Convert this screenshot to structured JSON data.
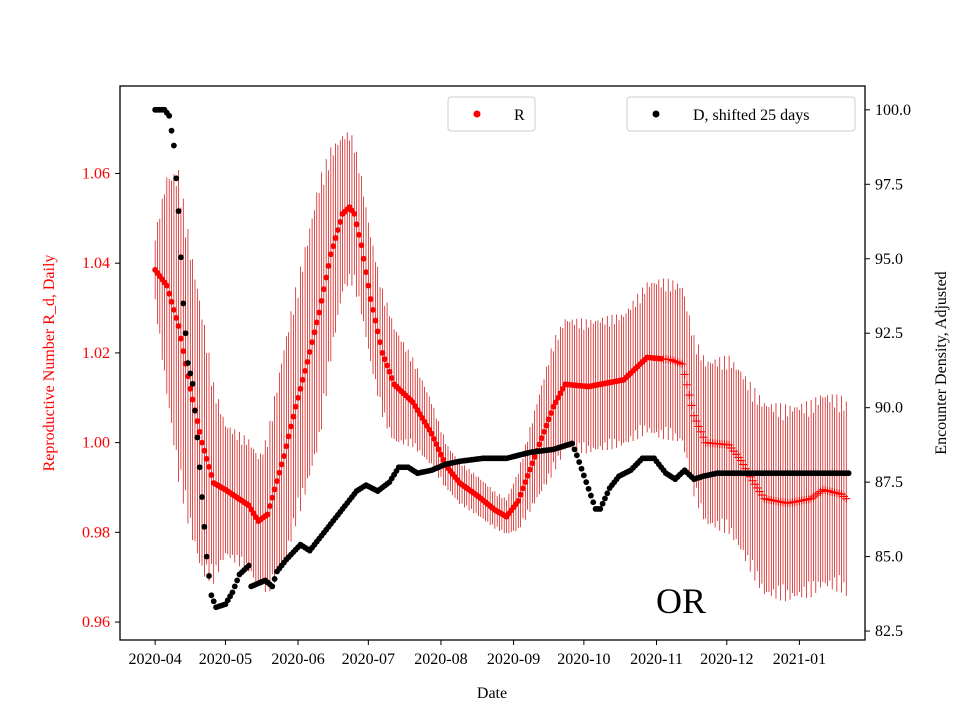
{
  "chart_data": {
    "type": "scatter",
    "title": "",
    "annotation": "OR",
    "xlabel": "Date",
    "ylabel_left": "Reproductive Number R_d, Daily",
    "ylabel_right": "Encounter Density, Adjusted",
    "x_ticks": [
      "2020-04",
      "2020-05",
      "2020-06",
      "2020-07",
      "2020-08",
      "2020-09",
      "2020-10",
      "2020-11",
      "2020-12",
      "2021-01"
    ],
    "x_tick_days": [
      0,
      30,
      61,
      91,
      122,
      153,
      183,
      214,
      244,
      275
    ],
    "x_range_days": [
      -15,
      303
    ],
    "left_axis": {
      "ylim": [
        0.956,
        1.0795
      ],
      "ticks": [
        0.96,
        0.98,
        1.0,
        1.02,
        1.04,
        1.06
      ],
      "tick_labels": [
        "0.96",
        "0.98",
        "1.00",
        "1.02",
        "1.04",
        "1.06"
      ],
      "color": "#ff0000"
    },
    "right_axis": {
      "ylim": [
        82.2,
        100.8
      ],
      "ticks": [
        82.5,
        85.0,
        87.5,
        90.0,
        92.5,
        95.0,
        97.5,
        100.0
      ],
      "tick_labels": [
        "82.5",
        "85.0",
        "87.5",
        "90.0",
        "92.5",
        "95.0",
        "97.5",
        "100.0"
      ],
      "color": "#000000"
    },
    "legend": [
      {
        "label": "R",
        "color": "#ff0000",
        "position": "top-center"
      },
      {
        "label": "D, shifted 25 days",
        "color": "#000000",
        "position": "top-right"
      }
    ],
    "series": [
      {
        "name": "R",
        "axis": "left",
        "color": "#ff0000",
        "marker": "dot, becomes plus after day 216",
        "keypoints_day_value": [
          [
            0,
            1.0385
          ],
          [
            5,
            1.035
          ],
          [
            10,
            1.026
          ],
          [
            15,
            1.012
          ],
          [
            20,
            1.0
          ],
          [
            25,
            0.991
          ],
          [
            30,
            0.9895
          ],
          [
            40,
            0.986
          ],
          [
            44,
            0.9825
          ],
          [
            48,
            0.984
          ],
          [
            55,
            0.997
          ],
          [
            60,
            1.008
          ],
          [
            65,
            1.018
          ],
          [
            70,
            1.029
          ],
          [
            75,
            1.042
          ],
          [
            80,
            1.051
          ],
          [
            83,
            1.0525
          ],
          [
            85,
            1.051
          ],
          [
            88,
            1.044
          ],
          [
            92,
            1.032
          ],
          [
            97,
            1.02
          ],
          [
            102,
            1.013
          ],
          [
            110,
            1.009
          ],
          [
            118,
            1.002
          ],
          [
            124,
            0.995
          ],
          [
            130,
            0.991
          ],
          [
            138,
            0.988
          ],
          [
            145,
            0.985
          ],
          [
            150,
            0.9835
          ],
          [
            155,
            0.987
          ],
          [
            160,
            0.994
          ],
          [
            170,
            1.008
          ],
          [
            175,
            1.013
          ],
          [
            185,
            1.0125
          ],
          [
            200,
            1.014
          ],
          [
            210,
            1.019
          ],
          [
            220,
            1.0185
          ],
          [
            225,
            1.0175
          ],
          [
            230,
            1.006
          ],
          [
            235,
            1.0
          ],
          [
            245,
            0.9995
          ],
          [
            250,
            0.996
          ],
          [
            255,
            0.9915
          ],
          [
            260,
            0.9875
          ],
          [
            270,
            0.9865
          ],
          [
            280,
            0.9875
          ],
          [
            285,
            0.9895
          ],
          [
            293,
            0.9885
          ],
          [
            295,
            0.9875
          ]
        ],
        "error_halfwidth_keypoints_day_value": [
          [
            0,
            0.008
          ],
          [
            5,
            0.025
          ],
          [
            10,
            0.035
          ],
          [
            20,
            0.03
          ],
          [
            30,
            0.015
          ],
          [
            45,
            0.015
          ],
          [
            55,
            0.025
          ],
          [
            70,
            0.03
          ],
          [
            80,
            0.018
          ],
          [
            90,
            0.015
          ],
          [
            100,
            0.014
          ],
          [
            110,
            0.01
          ],
          [
            125,
            0.005
          ],
          [
            150,
            0.004
          ],
          [
            170,
            0.015
          ],
          [
            200,
            0.015
          ],
          [
            215,
            0.018
          ],
          [
            230,
            0.018
          ],
          [
            260,
            0.022
          ],
          [
            295,
            0.022
          ]
        ]
      },
      {
        "name": "D, shifted 25 days",
        "axis": "right",
        "color": "#000000",
        "marker": "dot",
        "keypoints_day_value": [
          [
            0,
            100.0
          ],
          [
            4,
            100.0
          ],
          [
            6,
            99.8
          ],
          [
            8,
            98.8
          ],
          [
            10,
            96.6
          ],
          [
            12,
            93.5
          ],
          [
            14,
            91.5
          ],
          [
            16,
            90.8
          ],
          [
            18,
            89.0
          ],
          [
            20,
            87.0
          ],
          [
            22,
            85.0
          ],
          [
            24,
            83.7
          ],
          [
            26,
            83.3
          ],
          [
            30,
            83.4
          ],
          [
            33,
            83.8
          ],
          [
            36,
            84.4
          ],
          [
            40,
            84.7
          ],
          [
            41,
            84.0
          ],
          [
            44,
            84.1
          ],
          [
            47,
            84.2
          ],
          [
            50,
            84.0
          ],
          [
            52,
            84.5
          ],
          [
            56,
            84.9
          ],
          [
            62,
            85.4
          ],
          [
            66,
            85.2
          ],
          [
            70,
            85.6
          ],
          [
            74,
            86.0
          ],
          [
            78,
            86.4
          ],
          [
            82,
            86.8
          ],
          [
            86,
            87.2
          ],
          [
            90,
            87.4
          ],
          [
            95,
            87.2
          ],
          [
            100,
            87.5
          ],
          [
            104,
            88.0
          ],
          [
            108,
            88.0
          ],
          [
            112,
            87.8
          ],
          [
            118,
            87.9
          ],
          [
            124,
            88.1
          ],
          [
            130,
            88.2
          ],
          [
            140,
            88.3
          ],
          [
            150,
            88.3
          ],
          [
            160,
            88.5
          ],
          [
            170,
            88.6
          ],
          [
            178,
            88.8
          ],
          [
            180,
            88.4
          ],
          [
            184,
            87.5
          ],
          [
            188,
            86.6
          ],
          [
            190,
            86.6
          ],
          [
            194,
            87.3
          ],
          [
            198,
            87.7
          ],
          [
            203,
            87.9
          ],
          [
            208,
            88.3
          ],
          [
            213,
            88.3
          ],
          [
            218,
            87.8
          ],
          [
            222,
            87.6
          ],
          [
            226,
            87.9
          ],
          [
            230,
            87.6
          ],
          [
            234,
            87.7
          ],
          [
            240,
            87.8
          ],
          [
            296,
            87.8
          ]
        ]
      }
    ]
  }
}
